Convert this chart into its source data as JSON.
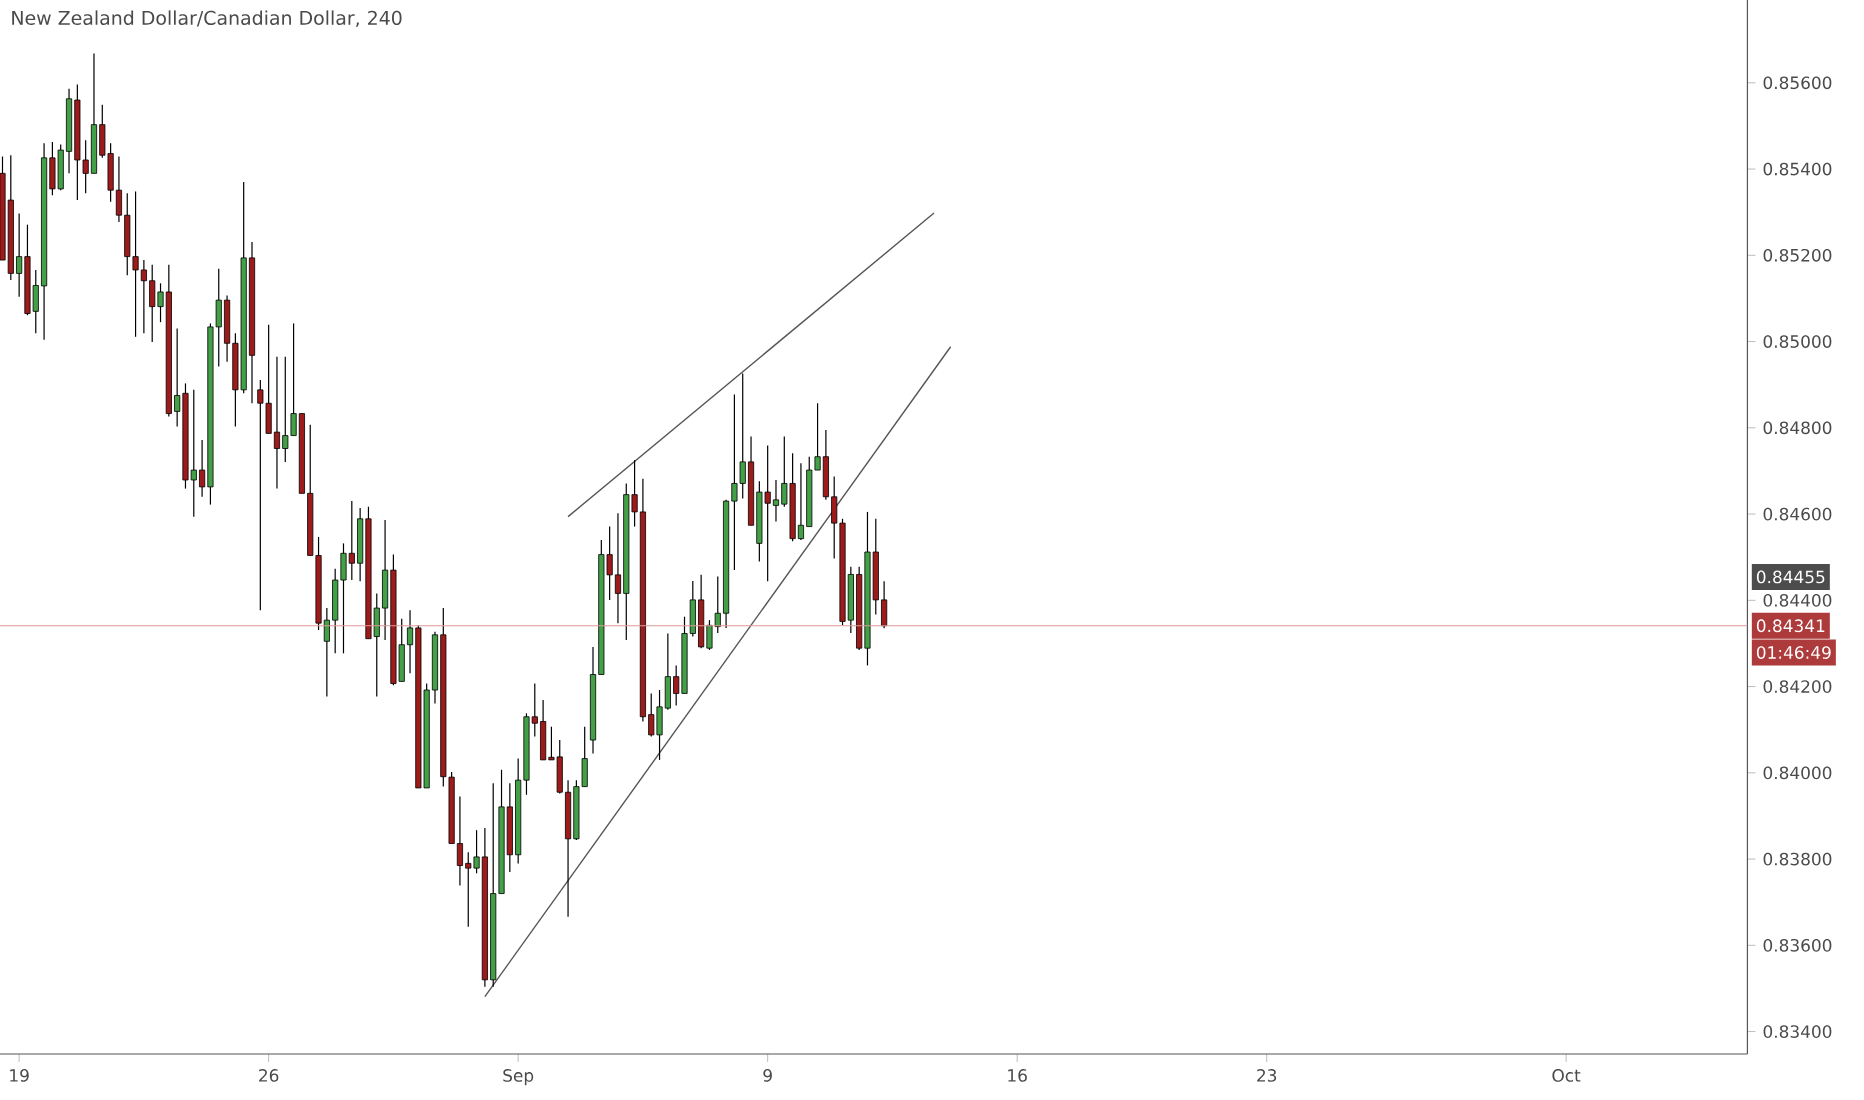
{
  "chart_data": {
    "type": "candlestick",
    "title": "New Zealand Dollar/Canadian Dollar, 240",
    "categories": [
      null,
      null,
      "19",
      null,
      null,
      null,
      null,
      null,
      null,
      null,
      null,
      null,
      null,
      null,
      null,
      null,
      null,
      null,
      null,
      null,
      null,
      null,
      null,
      null,
      null,
      null,
      null,
      null,
      null,
      null,
      null,
      null,
      "26",
      null,
      null,
      null,
      null,
      null,
      null,
      null,
      null,
      null,
      null,
      null,
      null,
      null,
      null,
      null,
      null,
      null,
      null,
      null,
      null,
      null,
      null,
      null,
      null,
      null,
      null,
      null,
      null,
      null,
      "Sep",
      null,
      null,
      null,
      null,
      null,
      null,
      null,
      null,
      null,
      null,
      null,
      null,
      null,
      null,
      null,
      null,
      null,
      null,
      null,
      null,
      null,
      null,
      null,
      null,
      null,
      null,
      null,
      null,
      null,
      "9",
      null,
      null,
      null,
      null,
      null,
      null,
      null,
      null,
      null,
      null,
      null,
      null,
      null,
      null,
      null,
      null,
      null,
      null,
      null,
      null,
      null,
      null,
      null,
      null,
      null,
      null,
      null,
      null,
      null,
      "16",
      null,
      null,
      null,
      null,
      null,
      null,
      null,
      null,
      null,
      null,
      null,
      null,
      null,
      null,
      null,
      null,
      null,
      null,
      null,
      null,
      null,
      null,
      null,
      null,
      null,
      null,
      null,
      null,
      null,
      "23",
      null,
      null,
      null,
      null,
      null,
      null,
      null,
      null,
      null,
      null,
      null,
      null,
      null,
      null,
      null,
      null,
      null,
      null,
      null,
      null,
      null,
      null,
      null,
      null,
      null,
      null,
      null,
      null,
      null,
      null,
      null,
      null,
      null,
      null,
      null,
      "Oct",
      null,
      null,
      null,
      null,
      null,
      null,
      null,
      null,
      null,
      null,
      null,
      null,
      null,
      null,
      null,
      null,
      null,
      null,
      null,
      null,
      null
    ],
    "ohlc": [
      [
        0.8539,
        0.85429,
        0.85189,
        0.85189
      ],
      [
        0.85328,
        0.85432,
        0.85143,
        0.85158
      ],
      [
        0.85158,
        0.85297,
        0.85104,
        0.85197
      ],
      [
        0.85197,
        0.85271,
        0.85061,
        0.85065
      ],
      [
        0.8507,
        0.85166,
        0.85019,
        0.8513
      ],
      [
        0.85129,
        0.8546,
        0.85004,
        0.85426
      ],
      [
        0.85426,
        0.85463,
        0.85339,
        0.85354
      ],
      [
        0.85354,
        0.85457,
        0.85351,
        0.85444
      ],
      [
        0.85441,
        0.85586,
        0.8539,
        0.85563
      ],
      [
        0.8556,
        0.85596,
        0.85328,
        0.85421
      ],
      [
        0.85421,
        0.85467,
        0.85344,
        0.8539
      ],
      [
        0.8539,
        0.85668,
        0.8539,
        0.85503
      ],
      [
        0.85503,
        0.85549,
        0.85426,
        0.85432
      ],
      [
        0.85436,
        0.8546,
        0.85324,
        0.85351
      ],
      [
        0.85351,
        0.85429,
        0.85277,
        0.85293
      ],
      [
        0.85293,
        0.85344,
        0.85154,
        0.85197
      ],
      [
        0.85197,
        0.85348,
        0.85011,
        0.85166
      ],
      [
        0.85166,
        0.85189,
        0.85019,
        0.85141
      ],
      [
        0.85141,
        0.85178,
        0.84999,
        0.85081
      ],
      [
        0.85081,
        0.85135,
        0.85045,
        0.85115
      ],
      [
        0.85115,
        0.85178,
        0.84826,
        0.84833
      ],
      [
        0.84838,
        0.8503,
        0.84803,
        0.84875
      ],
      [
        0.8488,
        0.84903,
        0.84659,
        0.84679
      ],
      [
        0.84679,
        0.84888,
        0.84594,
        0.84702
      ],
      [
        0.84702,
        0.84772,
        0.8464,
        0.84663
      ],
      [
        0.84663,
        0.85042,
        0.84622,
        0.85034
      ],
      [
        0.85034,
        0.85169,
        0.84942,
        0.85096
      ],
      [
        0.85096,
        0.85107,
        0.84953,
        0.84996
      ],
      [
        0.84996,
        0.85019,
        0.84803,
        0.84888
      ],
      [
        0.84888,
        0.8537,
        0.8488,
        0.85194
      ],
      [
        0.85194,
        0.85231,
        0.84857,
        0.84968
      ],
      [
        0.84888,
        0.84911,
        0.84377,
        0.84857
      ],
      [
        0.84857,
        0.85039,
        0.84787,
        0.84787
      ],
      [
        0.8479,
        0.84965,
        0.84659,
        0.84752
      ],
      [
        0.84752,
        0.84965,
        0.84721,
        0.84782
      ],
      [
        0.84782,
        0.85042,
        0.84782,
        0.84833
      ],
      [
        0.84833,
        0.84833,
        0.84648,
        0.84648
      ],
      [
        0.84648,
        0.84807,
        0.84504,
        0.84504
      ],
      [
        0.84504,
        0.84547,
        0.84331,
        0.84347
      ],
      [
        0.84305,
        0.84382,
        0.84177,
        0.84354
      ],
      [
        0.84354,
        0.84473,
        0.84277,
        0.84447
      ],
      [
        0.84447,
        0.84532,
        0.84277,
        0.84509
      ],
      [
        0.84509,
        0.8463,
        0.84447,
        0.84486
      ],
      [
        0.84486,
        0.84614,
        0.84444,
        0.84589
      ],
      [
        0.84589,
        0.84617,
        0.84311,
        0.84311
      ],
      [
        0.84316,
        0.84416,
        0.84177,
        0.84382
      ],
      [
        0.84382,
        0.84586,
        0.84308,
        0.8447
      ],
      [
        0.8447,
        0.84506,
        0.84203,
        0.84207
      ],
      [
        0.84212,
        0.84357,
        0.84212,
        0.84297
      ],
      [
        0.84297,
        0.84377,
        0.84231,
        0.84336
      ],
      [
        0.84336,
        0.84342,
        0.83965,
        0.83965
      ],
      [
        0.83965,
        0.84207,
        0.83965,
        0.84192
      ],
      [
        0.84192,
        0.84327,
        0.84161,
        0.8432
      ],
      [
        0.8432,
        0.84382,
        0.83968,
        0.83991
      ],
      [
        0.8399,
        0.84002,
        0.83836,
        0.83836
      ],
      [
        0.83836,
        0.83945,
        0.83739,
        0.83785
      ],
      [
        0.8379,
        0.83816,
        0.83643,
        0.83779
      ],
      [
        0.83779,
        0.83867,
        0.83767,
        0.83805
      ],
      [
        0.83805,
        0.83872,
        0.83504,
        0.8352
      ],
      [
        0.8352,
        0.83976,
        0.83504,
        0.8372
      ],
      [
        0.8372,
        0.84007,
        0.8372,
        0.83921
      ],
      [
        0.83921,
        0.83976,
        0.8377,
        0.8381
      ],
      [
        0.8381,
        0.84033,
        0.8379,
        0.83983
      ],
      [
        0.83983,
        0.84138,
        0.83949,
        0.8413
      ],
      [
        0.8413,
        0.84207,
        0.84084,
        0.84115
      ],
      [
        0.84119,
        0.84169,
        0.8403,
        0.8403
      ],
      [
        0.84036,
        0.84107,
        0.8403,
        0.8403
      ],
      [
        0.84037,
        0.84076,
        0.83952,
        0.83955
      ],
      [
        0.83955,
        0.83983,
        0.83666,
        0.83847
      ],
      [
        0.83847,
        0.83983,
        0.83844,
        0.83968
      ],
      [
        0.83968,
        0.84107,
        0.83968,
        0.84033
      ],
      [
        0.84076,
        0.84292,
        0.84045,
        0.84228
      ],
      [
        0.84228,
        0.8454,
        0.84228,
        0.84506
      ],
      [
        0.84506,
        0.84571,
        0.84401,
        0.84459
      ],
      [
        0.84459,
        0.84602,
        0.84347,
        0.84416
      ],
      [
        0.84416,
        0.84671,
        0.84308,
        0.84645
      ],
      [
        0.84645,
        0.84725,
        0.84571,
        0.84605
      ],
      [
        0.84605,
        0.84682,
        0.84119,
        0.8413
      ],
      [
        0.84135,
        0.84184,
        0.84084,
        0.84088
      ],
      [
        0.84088,
        0.84192,
        0.8403,
        0.84153
      ],
      [
        0.8415,
        0.84323,
        0.84146,
        0.84223
      ],
      [
        0.84223,
        0.84249,
        0.84156,
        0.84184
      ],
      [
        0.84184,
        0.84362,
        0.84184,
        0.84323
      ],
      [
        0.84323,
        0.84445,
        0.84316,
        0.84401
      ],
      [
        0.84401,
        0.84459,
        0.84289,
        0.84292
      ],
      [
        0.84289,
        0.84354,
        0.84285,
        0.84342
      ],
      [
        0.84339,
        0.84455,
        0.84324,
        0.8437
      ],
      [
        0.8437,
        0.84633,
        0.84336,
        0.8463
      ],
      [
        0.8463,
        0.84877,
        0.8447,
        0.84671
      ],
      [
        0.84671,
        0.84926,
        0.84636,
        0.84721
      ],
      [
        0.84721,
        0.8478,
        0.84574,
        0.84574
      ],
      [
        0.84532,
        0.84676,
        0.8449,
        0.84651
      ],
      [
        0.84651,
        0.84759,
        0.84444,
        0.84625
      ],
      [
        0.8462,
        0.84679,
        0.84583,
        0.84633
      ],
      [
        0.84623,
        0.8478,
        0.84617,
        0.84671
      ],
      [
        0.84671,
        0.84741,
        0.84537,
        0.84543
      ],
      [
        0.84543,
        0.84718,
        0.8454,
        0.84574
      ],
      [
        0.84571,
        0.84733,
        0.84571,
        0.84702
      ],
      [
        0.84702,
        0.84857,
        0.84702,
        0.84733
      ],
      [
        0.84733,
        0.84795,
        0.84633,
        0.8464
      ],
      [
        0.8464,
        0.84687,
        0.84497,
        0.84579
      ],
      [
        0.84579,
        0.84589,
        0.84342,
        0.84351
      ],
      [
        0.84354,
        0.84478,
        0.84324,
        0.8446
      ],
      [
        0.8446,
        0.84478,
        0.84285,
        0.84289
      ],
      [
        0.84289,
        0.84605,
        0.84249,
        0.84512
      ],
      [
        0.84512,
        0.84589,
        0.84367,
        0.84401
      ],
      [
        0.84401,
        0.84444,
        0.84335,
        0.84341
      ],
      null,
      null,
      null,
      null,
      null,
      null,
      null,
      null,
      null,
      null,
      null,
      null,
      null,
      null,
      null,
      null,
      null,
      null,
      null,
      null,
      null,
      null,
      null,
      null,
      null,
      null,
      null,
      null,
      null,
      null,
      null,
      null,
      null,
      null,
      null,
      null,
      null,
      null,
      null,
      null,
      null,
      null,
      null,
      null,
      null,
      null,
      null,
      null,
      null,
      null,
      null,
      null,
      null,
      null,
      null,
      null,
      null,
      null,
      null,
      null,
      null,
      null,
      null,
      null,
      null,
      null,
      null,
      null,
      null,
      null,
      null,
      null,
      null,
      null,
      null,
      null,
      null,
      null,
      null,
      null,
      null,
      null,
      null,
      null,
      null,
      null,
      null,
      null,
      null,
      null,
      null,
      null,
      null,
      null,
      null,
      null,
      null,
      null,
      null,
      null,
      null,
      null,
      null
    ],
    "series": [
      {
        "type": "line",
        "color": "#555555",
        "values": [
          null,
          null,
          null,
          null,
          null,
          null,
          null,
          null,
          null,
          null,
          null,
          null,
          null,
          null,
          null,
          null,
          null,
          null,
          null,
          null,
          null,
          null,
          null,
          null,
          null,
          null,
          null,
          null,
          null,
          null,
          null,
          null,
          null,
          null,
          null,
          null,
          null,
          null,
          null,
          null,
          null,
          null,
          null,
          null,
          null,
          null,
          null,
          null,
          null,
          null,
          null,
          null,
          null,
          null,
          null,
          null,
          null,
          null,
          null,
          null,
          null,
          null,
          null,
          null,
          null,
          null,
          null,
          null,
          0.84594,
          null,
          null,
          null,
          null,
          null,
          null,
          null,
          null,
          null,
          null,
          null,
          null,
          null,
          null,
          null,
          null,
          null,
          null,
          null,
          null,
          null,
          null,
          null,
          null,
          null,
          null,
          null,
          null,
          null,
          null,
          null,
          null,
          null,
          null,
          null,
          null,
          null,
          null,
          null,
          null,
          null,
          null,
          null,
          0.85298,
          null,
          null,
          null,
          null,
          null,
          null,
          null,
          null,
          null,
          null,
          null,
          null,
          null,
          null,
          null,
          null,
          null,
          null,
          null,
          null,
          null,
          null,
          null,
          null,
          null,
          null,
          null,
          null,
          null,
          null,
          null,
          null,
          null,
          null,
          null,
          null,
          null,
          null,
          null,
          null,
          null,
          null,
          null,
          null,
          null,
          null,
          null,
          null,
          null,
          null,
          null,
          null,
          null,
          null,
          null,
          null,
          null,
          null,
          null,
          null,
          null,
          null,
          null,
          null,
          null,
          null,
          null,
          null,
          null,
          null,
          null,
          null,
          null,
          null,
          null,
          null,
          null,
          null,
          null,
          null,
          null,
          null,
          null,
          null,
          null,
          null,
          null,
          null,
          null,
          null,
          null,
          null,
          null,
          null,
          null,
          null,
          null
        ]
      },
      {
        "type": "line",
        "color": "#555555",
        "values": [
          null,
          null,
          null,
          null,
          null,
          null,
          null,
          null,
          null,
          null,
          null,
          null,
          null,
          null,
          null,
          null,
          null,
          null,
          null,
          null,
          null,
          null,
          null,
          null,
          null,
          null,
          null,
          null,
          null,
          null,
          null,
          null,
          null,
          null,
          null,
          null,
          null,
          null,
          null,
          null,
          null,
          null,
          null,
          null,
          null,
          null,
          null,
          null,
          null,
          null,
          null,
          null,
          null,
          null,
          null,
          null,
          null,
          null,
          0.83481,
          null,
          null,
          null,
          null,
          null,
          null,
          null,
          null,
          null,
          null,
          null,
          null,
          null,
          null,
          null,
          null,
          null,
          null,
          null,
          null,
          null,
          null,
          null,
          null,
          null,
          null,
          null,
          null,
          null,
          null,
          null,
          null,
          null,
          null,
          null,
          null,
          null,
          null,
          null,
          null,
          null,
          null,
          null,
          null,
          null,
          null,
          null,
          null,
          null,
          null,
          null,
          null,
          null,
          null,
          null,
          0.84988,
          null,
          null,
          null,
          null,
          null,
          null,
          null,
          null,
          null,
          null,
          null,
          null,
          null,
          null,
          null,
          null,
          null,
          null,
          null,
          null,
          null,
          null,
          null,
          null,
          null,
          null,
          null,
          null,
          null,
          null,
          null,
          null,
          null,
          null,
          null,
          null,
          null,
          null,
          null,
          null,
          null,
          null,
          null,
          null,
          null,
          null,
          null,
          null,
          null,
          null,
          null,
          null,
          null,
          null,
          null,
          null,
          null,
          null,
          null,
          null,
          null,
          null,
          null,
          null,
          null,
          null,
          null,
          null,
          null,
          null,
          null,
          null,
          null,
          null,
          null,
          null,
          null,
          null,
          null,
          null,
          null,
          null,
          null,
          null,
          null,
          null,
          null,
          null,
          null,
          null,
          null,
          null,
          null,
          null,
          null
        ]
      }
    ],
    "ylim": [
      0.83348,
      0.85792
    ],
    "yticks": [
      {
        "value": 0.834,
        "label": "0.83400"
      },
      {
        "value": 0.836,
        "label": "0.83600"
      },
      {
        "value": 0.838,
        "label": "0.83800"
      },
      {
        "value": 0.84,
        "label": "0.84000"
      },
      {
        "value": 0.842,
        "label": "0.84200"
      },
      {
        "value": 0.844,
        "label": "0.84400"
      },
      {
        "value": 0.846,
        "label": "0.84600"
      },
      {
        "value": 0.848,
        "label": "0.84800"
      },
      {
        "value": 0.85,
        "label": "0.85000"
      },
      {
        "value": 0.852,
        "label": "0.85200"
      },
      {
        "value": 0.854,
        "label": "0.85400"
      },
      {
        "value": 0.856,
        "label": "0.85600"
      }
    ],
    "ref_lines": [
      {
        "axis": "y",
        "value": 0.84341,
        "label": "0.84341",
        "color": "#df9999"
      }
    ],
    "annotations": [
      "0.84455",
      "01:46:49"
    ]
  }
}
